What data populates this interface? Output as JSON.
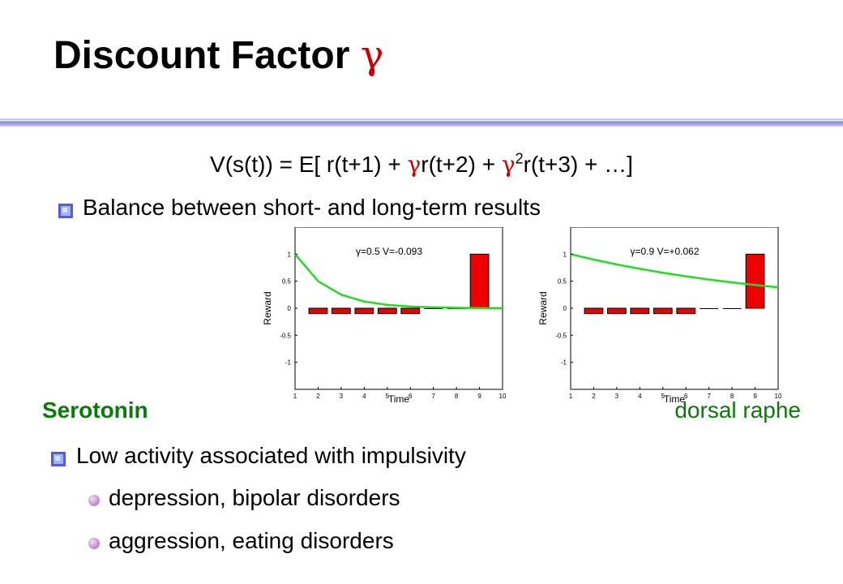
{
  "title": {
    "text": "Discount Factor",
    "symbol": "γ"
  },
  "formula": {
    "part1": "V(s(t)) = E[ r(t+1) + ",
    "gamma1": "γ",
    "part2": "r(t+2) + ",
    "gamma2": "γ",
    "sup": "2",
    "part3": "r(t+3) + …]"
  },
  "bullets": {
    "balance": "Balance between short-  and long-term results",
    "low_activity": "Low activity associated with impulsivity",
    "sub1": "depression, bipolar disorders",
    "sub2": "aggression, eating disorders"
  },
  "labels": {
    "serotonin": "Serotonin",
    "dorsal_raphe": "dorsal raphe"
  },
  "colors": {
    "bar": "#ee0000",
    "curve": "#22dd22",
    "green_text": "#0a7a0a",
    "gamma": "#cc0000",
    "rule": "#9a9ae6"
  },
  "chart_data": [
    {
      "type": "bar",
      "annotation": "γ=0.5  V=-0.093",
      "xlabel": "Time",
      "ylabel": "Reward",
      "xlim": [
        1,
        10
      ],
      "ylim": [
        -1.5,
        1.5
      ],
      "xticks": [
        "1",
        "2",
        "3",
        "4",
        "5",
        "6",
        "7",
        "8",
        "9",
        "10"
      ],
      "yticks": [
        "1",
        "0.5",
        "0",
        "-0.5",
        "-1"
      ],
      "bars": {
        "x": [
          2,
          3,
          4,
          5,
          6,
          7,
          8,
          9
        ],
        "values": [
          -0.1,
          -0.1,
          -0.1,
          -0.1,
          -0.1,
          0,
          0,
          1
        ]
      },
      "line": {
        "x": [
          1,
          2,
          3,
          4,
          5,
          6,
          7,
          8,
          9,
          10
        ],
        "values": [
          1,
          0.5,
          0.25,
          0.125,
          0.0625,
          0.031,
          0.016,
          0.008,
          0.004,
          0.002
        ]
      }
    },
    {
      "type": "bar",
      "annotation": "γ=0.9  V=+0.062",
      "xlabel": "Time",
      "ylabel": "Reward",
      "xlim": [
        1,
        10
      ],
      "ylim": [
        -1.5,
        1.5
      ],
      "xticks": [
        "1",
        "2",
        "3",
        "4",
        "5",
        "6",
        "7",
        "8",
        "9",
        "10"
      ],
      "yticks": [
        "1",
        "0.5",
        "0",
        "-0.5",
        "-1"
      ],
      "bars": {
        "x": [
          2,
          3,
          4,
          5,
          6,
          7,
          8,
          9
        ],
        "values": [
          -0.1,
          -0.1,
          -0.1,
          -0.1,
          -0.1,
          0,
          0,
          1
        ]
      },
      "line": {
        "x": [
          1,
          2,
          3,
          4,
          5,
          6,
          7,
          8,
          9,
          10
        ],
        "values": [
          1,
          0.9,
          0.81,
          0.729,
          0.656,
          0.59,
          0.531,
          0.478,
          0.43,
          0.387
        ]
      }
    }
  ]
}
